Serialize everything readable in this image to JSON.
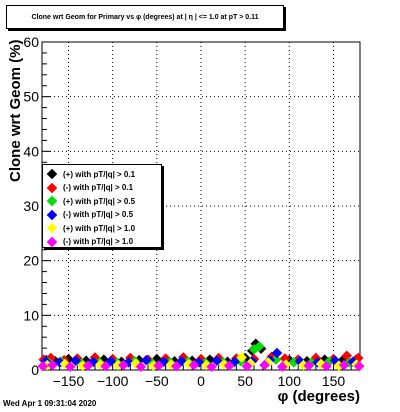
{
  "chart_data": {
    "type": "scatter",
    "title": "Clone wrt Geom for Primary vs φ (degrees) at | η | <= 1.0 at pT > 0.11",
    "xlabel": "φ (degrees)",
    "ylabel": "Clone wrt Geom (%)",
    "xlim": [
      -180,
      180
    ],
    "ylim": [
      0,
      60
    ],
    "x_ticks": [
      -150,
      -100,
      -50,
      0,
      50,
      100,
      150
    ],
    "x_tick_labels": [
      "−150",
      "−100",
      "−50",
      "0",
      "50",
      "100",
      "150"
    ],
    "y_ticks": [
      0,
      10,
      20,
      30,
      40,
      50,
      60
    ],
    "y_tick_labels": [
      "0",
      "10",
      "20",
      "30",
      "40",
      "50",
      "60"
    ],
    "grid": true,
    "legend_position": "left",
    "series": [
      {
        "name": "(+) with pT/|q| > 0.1",
        "color": "#000000",
        "x": [
          -175,
          -165,
          -150,
          -130,
          -110,
          -90,
          -70,
          -50,
          -30,
          -10,
          10,
          30,
          50,
          58,
          62,
          68,
          80,
          100,
          120,
          140,
          160,
          175
        ],
        "y": [
          1.8,
          1.6,
          2.0,
          1.7,
          1.9,
          1.5,
          1.8,
          2.0,
          1.6,
          1.7,
          1.9,
          1.5,
          2.2,
          3.5,
          4.8,
          3.9,
          2.4,
          1.8,
          1.6,
          1.9,
          1.7,
          1.8
        ]
      },
      {
        "name": "(-) with pT/|q| > 0.1",
        "color": "#ff0000",
        "x": [
          -178,
          -170,
          -155,
          -140,
          -120,
          -100,
          -80,
          -60,
          -40,
          -20,
          0,
          20,
          40,
          60,
          80,
          95,
          110,
          130,
          150,
          165,
          178
        ],
        "y": [
          1.9,
          2.2,
          1.8,
          2.1,
          2.3,
          2.0,
          2.2,
          1.9,
          2.1,
          2.3,
          2.0,
          2.2,
          2.1,
          2.0,
          2.4,
          2.1,
          1.9,
          2.2,
          2.0,
          2.6,
          2.2
        ]
      },
      {
        "name": "(+) with pT/|q| > 0.5",
        "color": "#00dd00",
        "x": [
          -172,
          -158,
          -135,
          -115,
          -95,
          -75,
          -55,
          -35,
          -15,
          5,
          25,
          45,
          60,
          66,
          85,
          105,
          125,
          145,
          168
        ],
        "y": [
          1.3,
          1.5,
          1.2,
          1.4,
          1.3,
          1.6,
          1.2,
          1.4,
          1.5,
          1.3,
          1.4,
          1.6,
          3.8,
          4.3,
          1.9,
          1.4,
          1.3,
          1.5,
          1.4
        ]
      },
      {
        "name": "(-) with pT/|q| > 0.5",
        "color": "#0000ff",
        "x": [
          -176,
          -160,
          -142,
          -122,
          -102,
          -82,
          -62,
          -42,
          -22,
          -2,
          18,
          38,
          58,
          78,
          86,
          112,
          132,
          152,
          172
        ],
        "y": [
          1.6,
          1.4,
          1.7,
          1.5,
          1.6,
          1.4,
          1.8,
          1.5,
          1.6,
          1.4,
          1.7,
          1.5,
          1.6,
          1.8,
          3.1,
          1.6,
          1.4,
          1.7,
          1.5
        ]
      },
      {
        "name": "(+) with pT/|q| > 1.0",
        "color": "#ffff00",
        "x": [
          -174,
          -154,
          -134,
          -114,
          -94,
          -74,
          -54,
          -34,
          -14,
          6,
          26,
          46,
          56,
          76,
          96,
          116,
          136,
          156,
          176
        ],
        "y": [
          0.9,
          1.1,
          0.8,
          1.0,
          0.9,
          1.2,
          0.8,
          1.0,
          1.1,
          0.9,
          1.0,
          2.3,
          1.2,
          1.4,
          1.0,
          0.9,
          1.1,
          0.8,
          1.0
        ]
      },
      {
        "name": "(-) with pT/|q| > 1.0",
        "color": "#ff00ff",
        "x": [
          -179,
          -168,
          -148,
          -128,
          -108,
          -88,
          -68,
          -48,
          -28,
          -8,
          12,
          32,
          52,
          72,
          92,
          122,
          142,
          162,
          179
        ],
        "y": [
          0.7,
          0.9,
          0.6,
          0.8,
          0.7,
          0.9,
          0.6,
          0.8,
          0.7,
          0.9,
          0.6,
          0.8,
          0.7,
          0.9,
          0.6,
          0.8,
          0.7,
          0.9,
          0.7
        ]
      }
    ]
  },
  "footer": {
    "datestamp": "Wed Apr  1 09:31:04 2020"
  }
}
